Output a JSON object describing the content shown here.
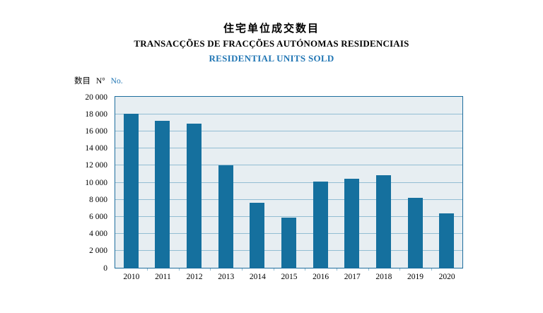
{
  "header": {
    "title_zh": "住宅单位成交数目",
    "title_pt": "TRANSACÇÕES DE FRACÇÕES AUTÓNOMAS RESIDENCIAIS",
    "title_en": "RESIDENTIAL UNITS SOLD"
  },
  "y_axis_unit": {
    "label_zh": "数目",
    "label_pt": "N°",
    "label_en": "No."
  },
  "colors": {
    "bar": "#15709e",
    "plot_background": "#e7eef2",
    "gridline": "#92bdd3",
    "plot_border": "#1d6d9d",
    "accent_blue": "#2176b4",
    "text": "#000000"
  },
  "chart_data": {
    "type": "bar",
    "title": "住宅单位成交数目 / TRANSACÇÕES DE FRACÇÕES AUTÓNOMAS RESIDENCIAIS / RESIDENTIAL UNITS SOLD",
    "categories": [
      "2010",
      "2011",
      "2012",
      "2013",
      "2014",
      "2015",
      "2016",
      "2017",
      "2018",
      "2019",
      "2020"
    ],
    "values": [
      18000,
      17200,
      16900,
      12000,
      7600,
      5850,
      10050,
      10450,
      10800,
      8150,
      6400
    ],
    "xlabel": "",
    "ylabel": "数目 N° No.",
    "ylim": [
      0,
      20000
    ],
    "ytick_step": 2000,
    "ytick_labels": [
      "0",
      "2 000",
      "4 000",
      "6 000",
      "8 000",
      "10 000",
      "12 000",
      "14 000",
      "16 000",
      "18 000",
      "20 000"
    ],
    "grid": true,
    "legend": false
  }
}
